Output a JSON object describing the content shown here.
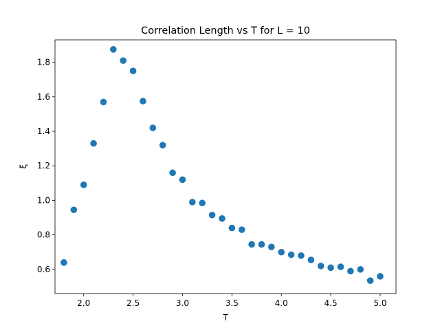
{
  "chart_data": {
    "type": "scatter",
    "title": "Correlation Length vs T for L = 10",
    "xlabel": "T",
    "ylabel": "ξ",
    "xlim": [
      1.71,
      5.16
    ],
    "ylim": [
      0.46,
      1.93
    ],
    "xticks": [
      2.0,
      2.5,
      3.0,
      3.5,
      4.0,
      4.5,
      5.0
    ],
    "xtick_labels": [
      "2.0",
      "2.5",
      "3.0",
      "3.5",
      "4.0",
      "4.5",
      "5.0"
    ],
    "yticks": [
      0.6,
      0.8,
      1.0,
      1.2,
      1.4,
      1.6,
      1.8
    ],
    "ytick_labels": [
      "0.6",
      "0.8",
      "1.0",
      "1.2",
      "1.4",
      "1.6",
      "1.8"
    ],
    "grid": false,
    "marker_color": "#1f77b4",
    "x": [
      1.8,
      1.9,
      2.0,
      2.1,
      2.2,
      2.3,
      2.4,
      2.5,
      2.6,
      2.7,
      2.8,
      2.9,
      3.0,
      3.1,
      3.2,
      3.3,
      3.4,
      3.5,
      3.6,
      3.7,
      3.8,
      3.9,
      4.0,
      4.1,
      4.2,
      4.3,
      4.4,
      4.5,
      4.6,
      4.7,
      4.8,
      4.9,
      5.0
    ],
    "y": [
      0.64,
      0.945,
      1.09,
      1.33,
      1.57,
      1.875,
      1.81,
      1.75,
      1.575,
      1.42,
      1.32,
      1.16,
      1.12,
      0.99,
      0.985,
      0.915,
      0.895,
      0.84,
      0.83,
      0.745,
      0.745,
      0.73,
      0.7,
      0.685,
      0.68,
      0.655,
      0.62,
      0.61,
      0.615,
      0.59,
      0.6,
      0.535,
      0.56
    ]
  }
}
